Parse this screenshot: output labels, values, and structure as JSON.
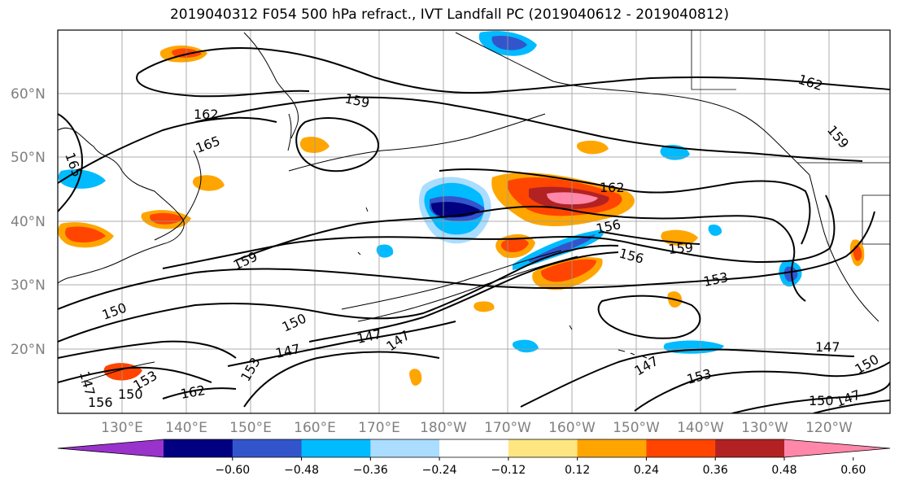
{
  "title": "2019040312 F054 500 hPa refract., IVT Landfall PC (2019040612 - 2019040812)",
  "map": {
    "lat_labels": [
      "60°N",
      "50°N",
      "40°N",
      "30°N",
      "20°N"
    ],
    "lon_labels": [
      "130°E",
      "140°E",
      "150°E",
      "160°E",
      "170°E",
      "180°W",
      "170°W",
      "160°W",
      "150°W",
      "140°W",
      "130°W",
      "120°W"
    ],
    "contour_labels": [
      "162",
      "159",
      "165",
      "165",
      "162",
      "162",
      "159",
      "153",
      "156",
      "150",
      "150",
      "147",
      "147",
      "147",
      "153",
      "159",
      "156",
      "159",
      "153",
      "147",
      "153",
      "150",
      "147",
      "150",
      "147",
      "162",
      "156",
      "150",
      "147"
    ],
    "grid": true,
    "colors": {
      "contour": "#000000",
      "grid": "#999999",
      "coast": "#000000"
    }
  },
  "colorbar": {
    "ticks": [
      "−0.60",
      "−0.48",
      "−0.36",
      "−0.24",
      "−0.12",
      "0.12",
      "0.24",
      "0.36",
      "0.48",
      "0.60"
    ],
    "colors": [
      "#9933cc",
      "#000080",
      "#3355cc",
      "#00bbff",
      "#aaddff",
      "#ffffff",
      "#ffe680",
      "#ffa500",
      "#ff4500",
      "#b22222",
      "#ff88aa"
    ],
    "extend": "both"
  },
  "field": {
    "blob_colors": {
      "pink": "#ff88aa",
      "darkred": "#b22222",
      "red": "#ff4500",
      "orange": "#ffa500",
      "yellow": "#ffe680",
      "lightblue": "#aaddff",
      "cyan": "#00bbff",
      "blue": "#3355cc",
      "navy": "#000080"
    }
  }
}
